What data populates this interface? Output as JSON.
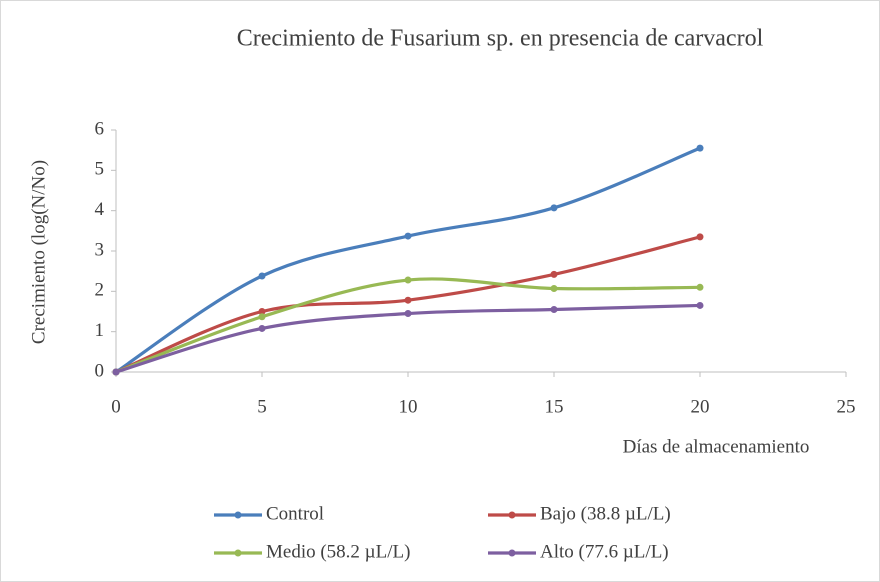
{
  "chart_data": {
    "type": "line",
    "title": "Crecimiento de Fusarium sp. en presencia de carvacrol",
    "x_label": "Días de almacenamiento",
    "y_label": "Crecimiento (log(N/No)",
    "x": [
      0,
      5,
      10,
      15,
      20
    ],
    "series": [
      {
        "name": "Control",
        "color": "#4a7ebb",
        "values": [
          0,
          2.38,
          3.37,
          4.07,
          5.55
        ]
      },
      {
        "name": "Bajo (38.8 µL/L)",
        "color": "#be4b48",
        "values": [
          0,
          1.5,
          1.78,
          2.42,
          3.35
        ]
      },
      {
        "name": "Medio (58.2 µL/L)",
        "color": "#98b954",
        "values": [
          0,
          1.37,
          2.28,
          2.07,
          2.1
        ]
      },
      {
        "name": "Alto (77.6 µL/L)",
        "color": "#7d5fa0",
        "values": [
          0,
          1.08,
          1.45,
          1.55,
          1.65
        ]
      }
    ],
    "xlim": [
      0,
      25
    ],
    "xticks": [
      0,
      5,
      10,
      15,
      20,
      25
    ],
    "ylim": [
      0,
      6
    ],
    "yticks": [
      0,
      1,
      2,
      3,
      4,
      5,
      6
    ],
    "smooth": true,
    "grid": false,
    "legend": "bottom"
  }
}
